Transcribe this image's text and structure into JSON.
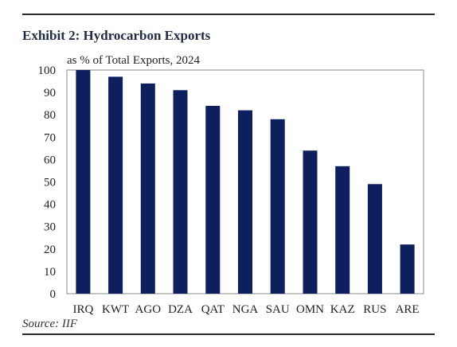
{
  "exhibit": {
    "title": "Exhibit 2: Hydrocarbon Exports",
    "source": "Source: IIF"
  },
  "chart_data": {
    "type": "bar",
    "title": "Exhibit 2: Hydrocarbon Exports",
    "subtitle": "as % of Total Exports, 2024",
    "xlabel": "",
    "ylabel": "",
    "categories": [
      "IRQ",
      "KWT",
      "AGO",
      "DZA",
      "QAT",
      "NGA",
      "SAU",
      "OMN",
      "KAZ",
      "RUS",
      "ARE"
    ],
    "values": [
      100,
      97,
      94,
      91,
      84,
      82,
      78,
      64,
      57,
      49,
      22
    ],
    "ylim": [
      0,
      100
    ],
    "yticks": [
      0,
      10,
      20,
      30,
      40,
      50,
      60,
      70,
      80,
      90,
      100
    ],
    "grid": false,
    "legend": "none",
    "bar_color": "#0d1f5c"
  }
}
